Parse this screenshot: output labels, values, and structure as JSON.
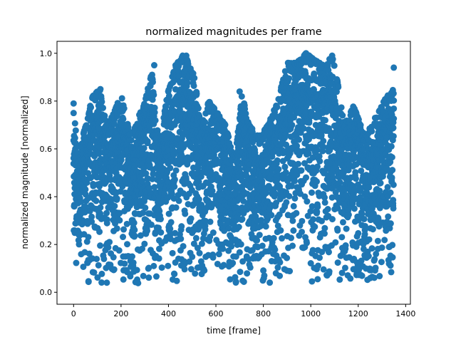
{
  "chart_data": {
    "type": "scatter",
    "title": "normalized magnitudes per frame",
    "xlabel": "time [frame]",
    "ylabel": "normalized magnitude [normalized]",
    "xlim": [
      -70,
      1420
    ],
    "ylim": [
      -0.05,
      1.05
    ],
    "xticks": [
      0,
      200,
      400,
      600,
      800,
      1000,
      1200,
      1400
    ],
    "yticks": [
      0.0,
      0.2,
      0.4,
      0.6,
      0.8,
      1.0
    ],
    "xtick_labels": [
      "0",
      "200",
      "400",
      "600",
      "800",
      "1000",
      "1200",
      "1400"
    ],
    "ytick_labels": [
      "0.0",
      "0.2",
      "0.4",
      "0.6",
      "0.8",
      "1.0"
    ],
    "grid": false,
    "marker_color": "#1f77b4",
    "frame_count": 1350,
    "upper_envelope": [
      {
        "x": 0,
        "y": 0.79
      },
      {
        "x": 20,
        "y": 0.55
      },
      {
        "x": 45,
        "y": 0.68
      },
      {
        "x": 80,
        "y": 0.82
      },
      {
        "x": 110,
        "y": 0.85
      },
      {
        "x": 140,
        "y": 0.7
      },
      {
        "x": 170,
        "y": 0.75
      },
      {
        "x": 200,
        "y": 0.83
      },
      {
        "x": 240,
        "y": 0.65
      },
      {
        "x": 300,
        "y": 0.8
      },
      {
        "x": 330,
        "y": 0.92
      },
      {
        "x": 360,
        "y": 0.62
      },
      {
        "x": 400,
        "y": 0.85
      },
      {
        "x": 430,
        "y": 0.95
      },
      {
        "x": 460,
        "y": 0.99
      },
      {
        "x": 480,
        "y": 0.98
      },
      {
        "x": 510,
        "y": 0.9
      },
      {
        "x": 540,
        "y": 0.7
      },
      {
        "x": 570,
        "y": 0.8
      },
      {
        "x": 600,
        "y": 0.76
      },
      {
        "x": 640,
        "y": 0.7
      },
      {
        "x": 680,
        "y": 0.55
      },
      {
        "x": 710,
        "y": 0.83
      },
      {
        "x": 740,
        "y": 0.7
      },
      {
        "x": 780,
        "y": 0.65
      },
      {
        "x": 820,
        "y": 0.7
      },
      {
        "x": 860,
        "y": 0.8
      },
      {
        "x": 900,
        "y": 0.96
      },
      {
        "x": 940,
        "y": 0.96
      },
      {
        "x": 980,
        "y": 1.0
      },
      {
        "x": 1020,
        "y": 0.97
      },
      {
        "x": 1060,
        "y": 0.95
      },
      {
        "x": 1090,
        "y": 0.99
      },
      {
        "x": 1110,
        "y": 0.9
      },
      {
        "x": 1140,
        "y": 0.7
      },
      {
        "x": 1180,
        "y": 0.78
      },
      {
        "x": 1230,
        "y": 0.65
      },
      {
        "x": 1280,
        "y": 0.75
      },
      {
        "x": 1320,
        "y": 0.82
      },
      {
        "x": 1350,
        "y": 0.85
      }
    ],
    "lower_envelope": [
      {
        "x": 0,
        "y": 0.1
      },
      {
        "x": 20,
        "y": 0.01
      },
      {
        "x": 100,
        "y": 0.02
      },
      {
        "x": 200,
        "y": 0.03
      },
      {
        "x": 300,
        "y": 0.04
      },
      {
        "x": 400,
        "y": 0.05
      },
      {
        "x": 500,
        "y": 0.04
      },
      {
        "x": 600,
        "y": 0.03
      },
      {
        "x": 700,
        "y": 0.04
      },
      {
        "x": 800,
        "y": 0.03
      },
      {
        "x": 900,
        "y": 0.05
      },
      {
        "x": 1000,
        "y": 0.04
      },
      {
        "x": 1100,
        "y": 0.04
      },
      {
        "x": 1200,
        "y": 0.03
      },
      {
        "x": 1300,
        "y": 0.03
      },
      {
        "x": 1350,
        "y": 0.03
      }
    ],
    "notable_points": [
      {
        "x": 0,
        "y": 0.79
      },
      {
        "x": 0,
        "y": 0.75
      },
      {
        "x": 113,
        "y": 0.85
      },
      {
        "x": 340,
        "y": 0.95
      },
      {
        "x": 460,
        "y": 0.99
      },
      {
        "x": 475,
        "y": 0.99
      },
      {
        "x": 700,
        "y": 0.84
      },
      {
        "x": 980,
        "y": 1.0
      },
      {
        "x": 1090,
        "y": 0.99
      },
      {
        "x": 1350,
        "y": 0.94
      }
    ]
  }
}
